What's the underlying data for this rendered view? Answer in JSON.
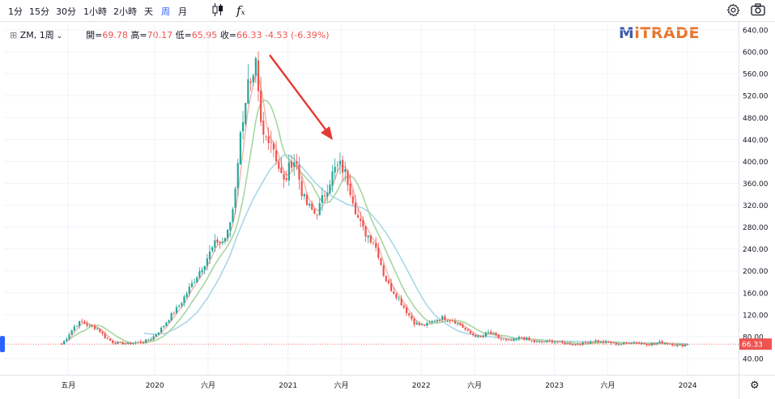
{
  "toolbar": {
    "timeframes": [
      "1分",
      "15分",
      "30分",
      "1小時",
      "2小時",
      "天",
      "周",
      "月"
    ],
    "active_timeframe": "周",
    "icons": [
      "candle-type-icon",
      "indicator-fx-icon",
      "settings-gear-icon",
      "camera-icon"
    ]
  },
  "legend": {
    "symbol": "ZM, 1周",
    "open_label": "開=",
    "open": "69.78",
    "high_label": "高=",
    "high": "70.17",
    "low_label": "低=",
    "low": "65.95",
    "close_label": "收=",
    "close": "66.33",
    "change": "-4.53 (-6.39%)"
  },
  "logo": {
    "m": "M",
    "rest": "iTRADE"
  },
  "colors": {
    "up": "#26a69a",
    "down": "#ef5350",
    "ma_fast": "#f2b3a6",
    "ma_mid": "#a9d5a0",
    "ma_slow": "#a9d7e8",
    "price_line": "#ef5350",
    "arrow": "#e53935",
    "accent": "#2962ff"
  },
  "chart_data": {
    "type": "candlestick",
    "yaxis": {
      "min": 40,
      "max": 640,
      "ticks": [
        40,
        80,
        120,
        160,
        200,
        240,
        280,
        320,
        360,
        400,
        440,
        480,
        520,
        560,
        600,
        640
      ]
    },
    "xaxis": {
      "labels": [
        {
          "t": 0.05,
          "text": "五月"
        },
        {
          "t": 0.7,
          "text": "2020"
        },
        {
          "t": 1.1,
          "text": "六月"
        },
        {
          "t": 1.7,
          "text": "2021"
        },
        {
          "t": 2.1,
          "text": "六月"
        },
        {
          "t": 2.7,
          "text": "2022"
        },
        {
          "t": 3.1,
          "text": "六月"
        },
        {
          "t": 3.7,
          "text": "2023"
        },
        {
          "t": 4.1,
          "text": "六月"
        },
        {
          "t": 4.7,
          "text": "2024"
        }
      ]
    },
    "last_price": 66.33,
    "last_price_label": "66.33",
    "anchors": [
      [
        0.0,
        66
      ],
      [
        0.03,
        75
      ],
      [
        0.07,
        90
      ],
      [
        0.1,
        100
      ],
      [
        0.15,
        108
      ],
      [
        0.2,
        100
      ],
      [
        0.27,
        95
      ],
      [
        0.33,
        78
      ],
      [
        0.38,
        70
      ],
      [
        0.43,
        68
      ],
      [
        0.5,
        67
      ],
      [
        0.57,
        70
      ],
      [
        0.63,
        72
      ],
      [
        0.68,
        78
      ],
      [
        0.75,
        95
      ],
      [
        0.81,
        115
      ],
      [
        0.88,
        135
      ],
      [
        0.94,
        160
      ],
      [
        1.0,
        185
      ],
      [
        1.06,
        210
      ],
      [
        1.13,
        240
      ],
      [
        1.17,
        255
      ],
      [
        1.2,
        250
      ],
      [
        1.25,
        270
      ],
      [
        1.29,
        320
      ],
      [
        1.33,
        420
      ],
      [
        1.37,
        500
      ],
      [
        1.4,
        540
      ],
      [
        1.43,
        525
      ],
      [
        1.46,
        575
      ],
      [
        1.49,
        470
      ],
      [
        1.52,
        440
      ],
      [
        1.56,
        450
      ],
      [
        1.6,
        420
      ],
      [
        1.64,
        380
      ],
      [
        1.67,
        360
      ],
      [
        1.7,
        380
      ],
      [
        1.73,
        405
      ],
      [
        1.76,
        400
      ],
      [
        1.79,
        360
      ],
      [
        1.82,
        330
      ],
      [
        1.86,
        315
      ],
      [
        1.9,
        305
      ],
      [
        1.94,
        318
      ],
      [
        1.98,
        345
      ],
      [
        2.02,
        370
      ],
      [
        2.06,
        388
      ],
      [
        2.1,
        392
      ],
      [
        2.14,
        372
      ],
      [
        2.18,
        340
      ],
      [
        2.22,
        300
      ],
      [
        2.26,
        275
      ],
      [
        2.3,
        265
      ],
      [
        2.34,
        255
      ],
      [
        2.38,
        230
      ],
      [
        2.42,
        192
      ],
      [
        2.46,
        172
      ],
      [
        2.5,
        160
      ],
      [
        2.55,
        142
      ],
      [
        2.6,
        122
      ],
      [
        2.65,
        105
      ],
      [
        2.7,
        100
      ],
      [
        2.75,
        102
      ],
      [
        2.8,
        110
      ],
      [
        2.85,
        115
      ],
      [
        2.9,
        112
      ],
      [
        2.95,
        108
      ],
      [
        3.0,
        100
      ],
      [
        3.05,
        88
      ],
      [
        3.1,
        82
      ],
      [
        3.15,
        78
      ],
      [
        3.2,
        88
      ],
      [
        3.25,
        82
      ],
      [
        3.3,
        75
      ],
      [
        3.35,
        72
      ],
      [
        3.4,
        73
      ],
      [
        3.45,
        80
      ],
      [
        3.5,
        74
      ],
      [
        3.55,
        70
      ],
      [
        3.6,
        70
      ],
      [
        3.65,
        71
      ],
      [
        3.7,
        72
      ],
      [
        3.75,
        68
      ],
      [
        3.8,
        67
      ],
      [
        3.85,
        66
      ],
      [
        3.9,
        67
      ],
      [
        3.95,
        70
      ],
      [
        4.0,
        73
      ],
      [
        4.05,
        70
      ],
      [
        4.1,
        70
      ],
      [
        4.15,
        67
      ],
      [
        4.2,
        66
      ],
      [
        4.25,
        69
      ],
      [
        4.3,
        70
      ],
      [
        4.35,
        68
      ],
      [
        4.4,
        66
      ],
      [
        4.45,
        67
      ],
      [
        4.5,
        70
      ],
      [
        4.55,
        68
      ],
      [
        4.6,
        65
      ],
      [
        4.65,
        64
      ],
      [
        4.7,
        66
      ]
    ],
    "sma_slow_anchors": [
      [
        0.62,
        86
      ],
      [
        0.7,
        84
      ],
      [
        0.78,
        86
      ],
      [
        0.86,
        95
      ],
      [
        0.94,
        107
      ],
      [
        1.02,
        125
      ],
      [
        1.1,
        152
      ],
      [
        1.18,
        185
      ],
      [
        1.26,
        225
      ],
      [
        1.32,
        265
      ],
      [
        1.38,
        300
      ],
      [
        1.44,
        332
      ],
      [
        1.5,
        358
      ],
      [
        1.56,
        383
      ],
      [
        1.62,
        400
      ],
      [
        1.67,
        412
      ],
      [
        1.72,
        410
      ],
      [
        1.78,
        396
      ],
      [
        1.84,
        380
      ],
      [
        1.9,
        362
      ],
      [
        1.96,
        348
      ],
      [
        2.02,
        338
      ],
      [
        2.08,
        330
      ],
      [
        2.14,
        322
      ],
      [
        2.2,
        318
      ],
      [
        2.26,
        315
      ],
      [
        2.32,
        305
      ],
      [
        2.38,
        288
      ],
      [
        2.44,
        268
      ],
      [
        2.5,
        244
      ],
      [
        2.56,
        218
      ],
      [
        2.62,
        190
      ],
      [
        2.68,
        162
      ],
      [
        2.74,
        138
      ],
      [
        2.8,
        120
      ],
      [
        2.86,
        108
      ],
      [
        2.92,
        98
      ],
      [
        2.98,
        90
      ],
      [
        3.04,
        86
      ],
      [
        3.1,
        83
      ],
      [
        3.2,
        80
      ],
      [
        3.35,
        77
      ],
      [
        3.5,
        75
      ],
      [
        3.7,
        72
      ],
      [
        3.9,
        71
      ],
      [
        4.1,
        70
      ],
      [
        4.3,
        69
      ],
      [
        4.5,
        68
      ],
      [
        4.7,
        67
      ]
    ]
  }
}
